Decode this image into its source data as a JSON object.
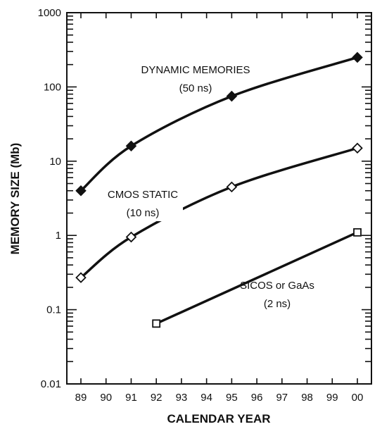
{
  "chart_data": {
    "type": "line",
    "xlabel": "CALENDAR YEAR",
    "ylabel": "MEMORY SIZE (Mb)",
    "x_tick_labels": [
      "89",
      "90",
      "91",
      "92",
      "93",
      "94",
      "95",
      "96",
      "97",
      "98",
      "99",
      "00"
    ],
    "x_values": [
      89,
      90,
      91,
      92,
      93,
      94,
      95,
      96,
      97,
      98,
      99,
      100
    ],
    "y_scale": "log",
    "ylim": [
      0.01,
      1000
    ],
    "y_tick_labels": [
      "1000",
      "100",
      "10",
      "1",
      "0.1",
      "0.01"
    ],
    "y_tick_values": [
      1000,
      100,
      10,
      1,
      0.1,
      0.01
    ],
    "grid": false,
    "series": [
      {
        "name": "DYNAMIC MEMORIES",
        "note": "(50 ns)",
        "marker": "filled-diamond",
        "points": [
          [
            89,
            4
          ],
          [
            91,
            16
          ],
          [
            95,
            75
          ],
          [
            100,
            250
          ]
        ]
      },
      {
        "name": "CMOS STATIC",
        "note": "(10 ns)",
        "marker": "open-diamond",
        "points": [
          [
            89,
            0.27
          ],
          [
            91,
            0.95
          ],
          [
            95,
            4.5
          ],
          [
            100,
            15
          ]
        ]
      },
      {
        "name": "SICOS or GaAs",
        "note": "(2 ns)",
        "marker": "open-square",
        "points": [
          [
            92,
            0.065
          ],
          [
            100,
            1.1
          ]
        ]
      }
    ]
  }
}
